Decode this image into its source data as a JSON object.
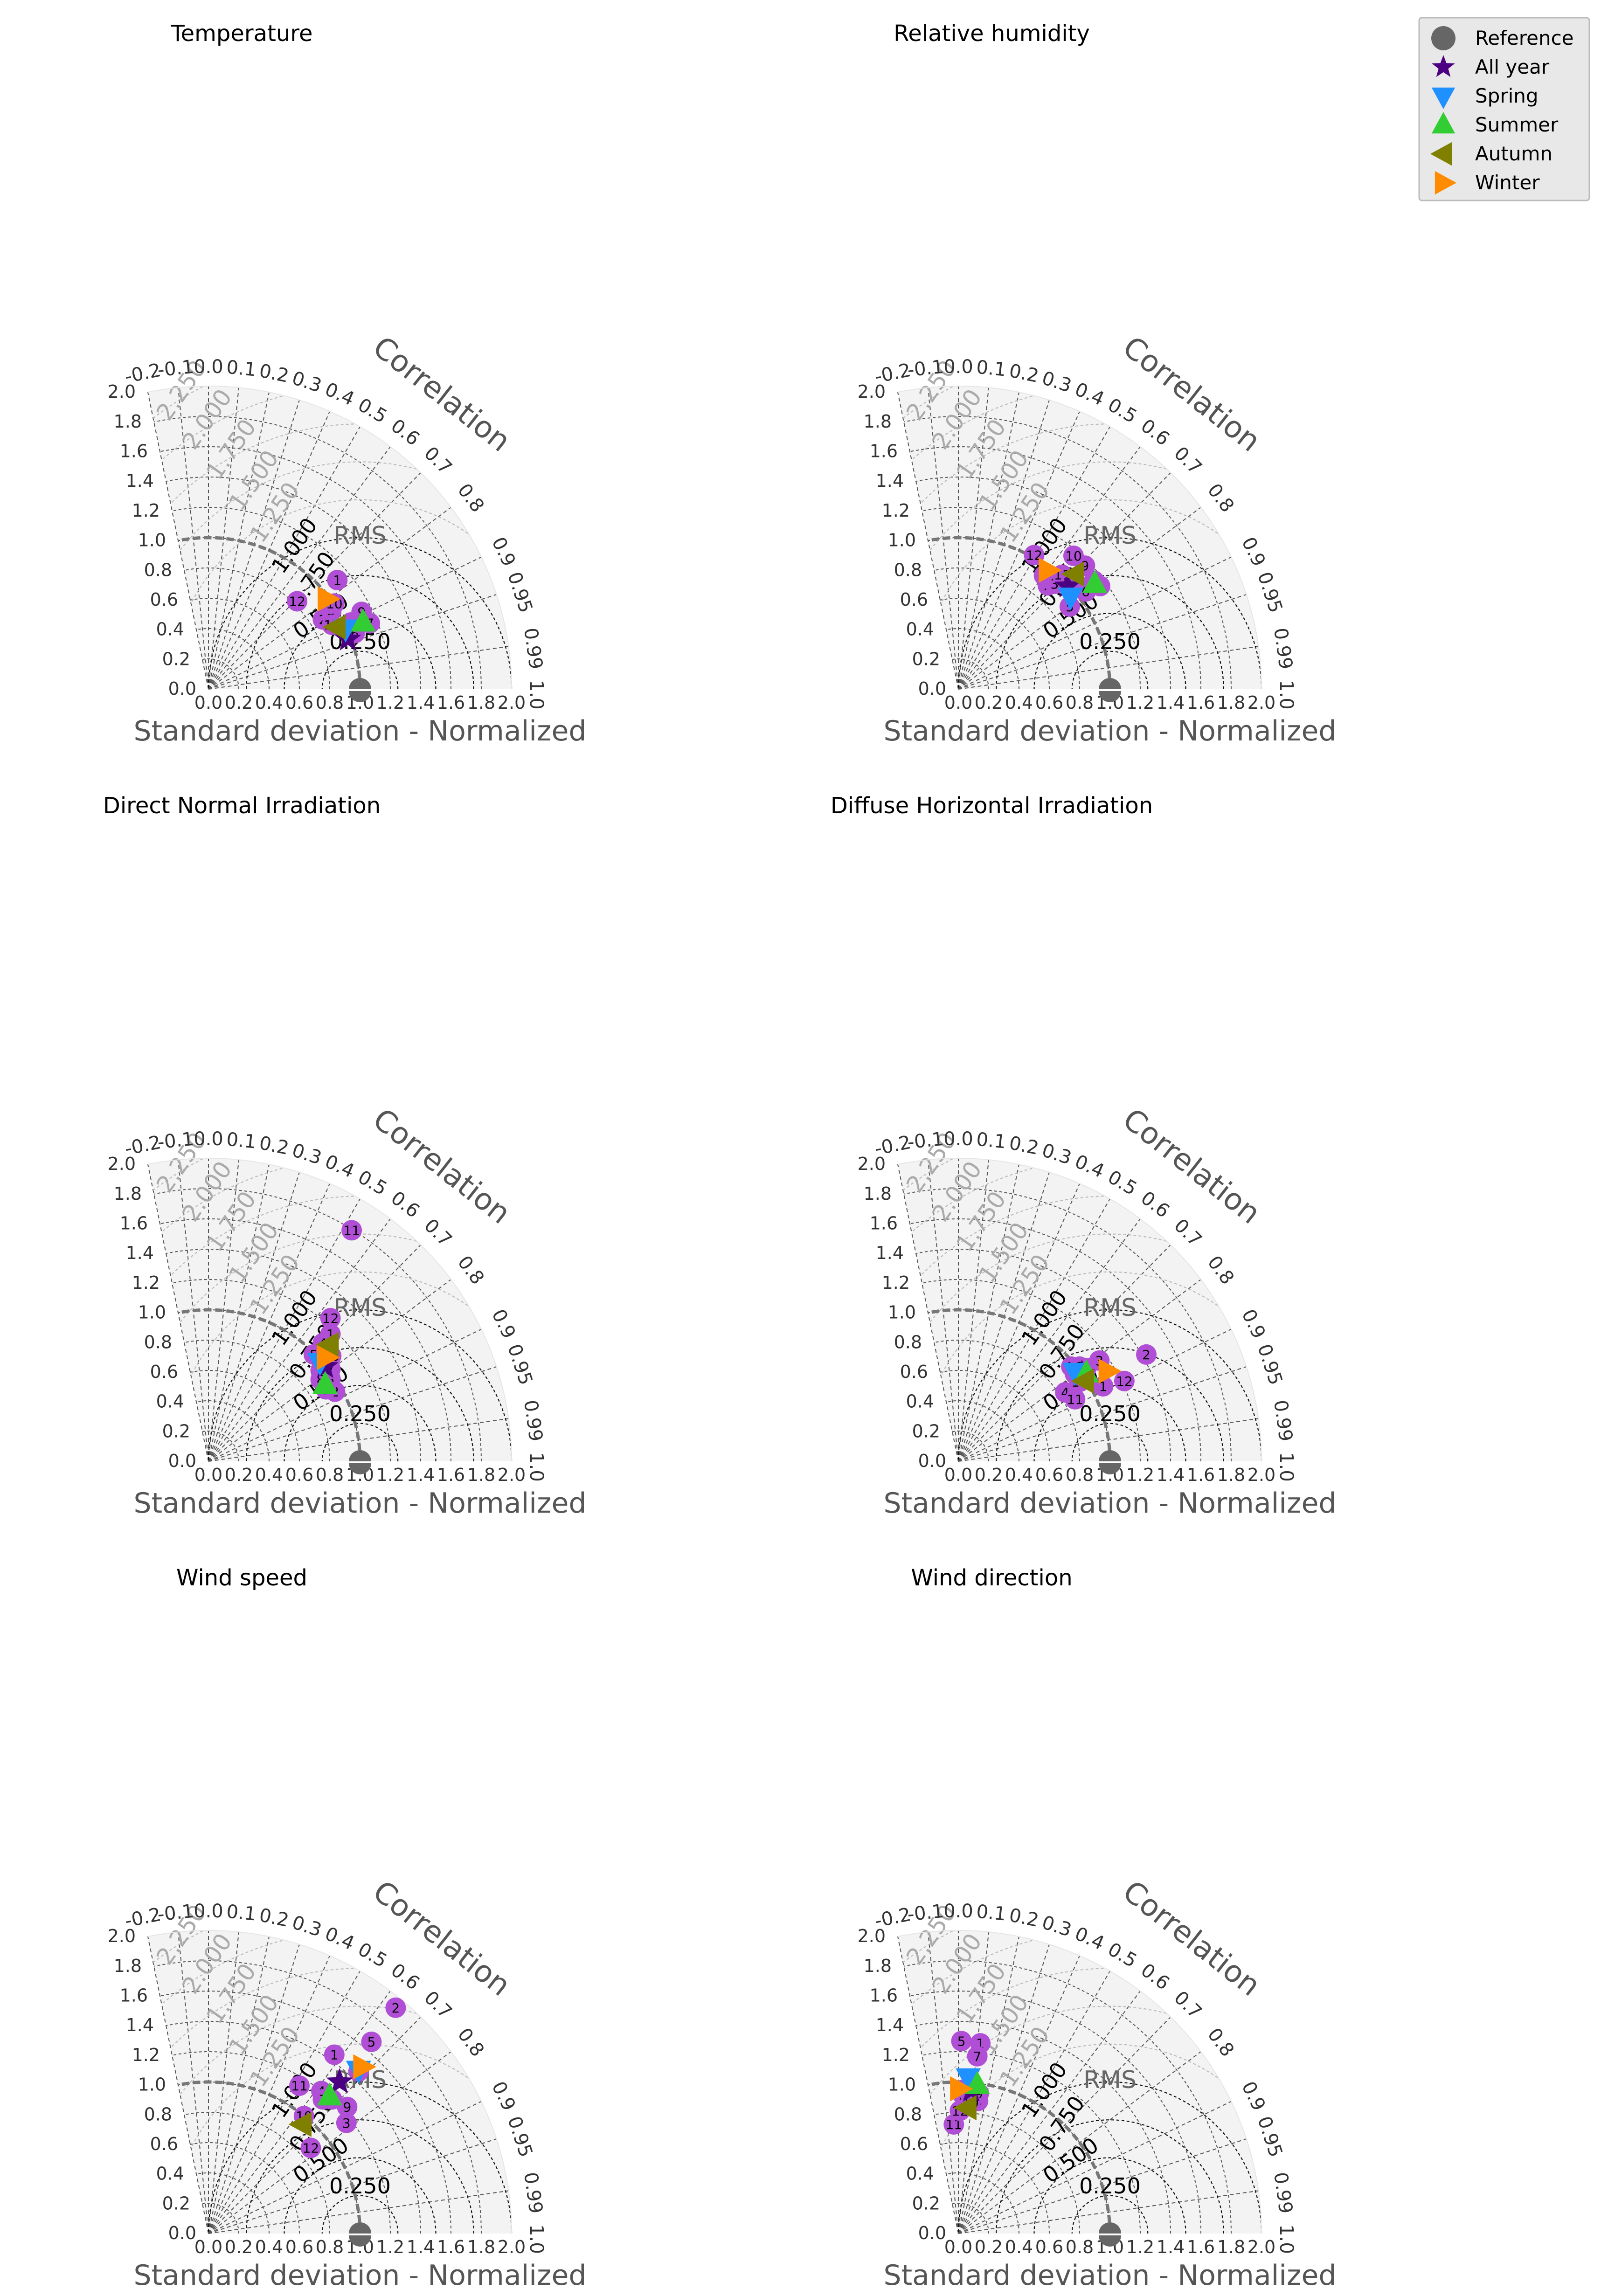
{
  "figure": {
    "xlabel": "Standard deviation - Normalized",
    "corr_title": "Correlation",
    "rms_title": "RMS",
    "std_ticks": [
      "0.0",
      "0.2",
      "0.4",
      "0.6",
      "0.8",
      "1.0",
      "1.2",
      "1.4",
      "1.6",
      "1.8",
      "2.0"
    ],
    "corr_ticks": [
      "-0.2",
      "-0.1",
      "0.0",
      "0.1",
      "0.2",
      "0.3",
      "0.4",
      "0.5",
      "0.6",
      "0.7",
      "0.8",
      "0.9",
      "0.95",
      "0.99",
      "1.0"
    ],
    "rms_contours": [
      "0.250",
      "0.500",
      "0.750",
      "1.000",
      "1.250",
      "1.500",
      "1.750",
      "2.000",
      "2.250"
    ]
  },
  "legend": {
    "items": [
      {
        "label": "Reference",
        "marker": "circle",
        "color": "#666666"
      },
      {
        "label": "All year",
        "marker": "star",
        "color": "#4b0082"
      },
      {
        "label": "Spring",
        "marker": "triangle-down",
        "color": "#1e90ff"
      },
      {
        "label": "Summer",
        "marker": "triangle-up",
        "color": "#32cd32"
      },
      {
        "label": "Autumn",
        "marker": "triangle-left",
        "color": "#808000"
      },
      {
        "label": "Winter",
        "marker": "triangle-right",
        "color": "#ff8c00"
      }
    ]
  },
  "colors": {
    "month": "#b04fd6",
    "grid": "#555555",
    "background": "#f3f3f3",
    "reference_arc": "#777777",
    "rms_far": "#bbbbbb"
  },
  "chart_data": [
    {
      "type": "scatter",
      "title": "Temperature",
      "xlabel": "Standard deviation - Normalized",
      "points": [
        {
          "label": "1",
          "kind": "month",
          "x": 0.85,
          "y": 0.72
        },
        {
          "label": "2",
          "kind": "month",
          "x": 0.755,
          "y": 0.46
        },
        {
          "label": "3",
          "kind": "month",
          "x": 0.81,
          "y": 0.52
        },
        {
          "label": "4",
          "kind": "month",
          "x": 0.94,
          "y": 0.44
        },
        {
          "label": "5",
          "kind": "month",
          "x": 0.89,
          "y": 0.405
        },
        {
          "label": "6",
          "kind": "month",
          "x": 0.965,
          "y": 0.37
        },
        {
          "label": "7",
          "kind": "month",
          "x": 1.065,
          "y": 0.435
        },
        {
          "label": "8",
          "kind": "month",
          "x": 0.985,
          "y": 0.44
        },
        {
          "label": "9",
          "kind": "month",
          "x": 1.01,
          "y": 0.51
        },
        {
          "label": "10",
          "kind": "month",
          "x": 0.83,
          "y": 0.565
        },
        {
          "label": "11",
          "kind": "month",
          "x": 0.815,
          "y": 0.425
        },
        {
          "label": "12",
          "kind": "month",
          "x": 0.585,
          "y": 0.58
        },
        {
          "label": "",
          "kind": "all",
          "x": 0.92,
          "y": 0.33
        },
        {
          "label": "",
          "kind": "spring",
          "x": 0.905,
          "y": 0.4
        },
        {
          "label": "",
          "kind": "summer",
          "x": 1.02,
          "y": 0.44
        },
        {
          "label": "",
          "kind": "autumn",
          "x": 0.845,
          "y": 0.41
        },
        {
          "label": "",
          "kind": "winter",
          "x": 0.78,
          "y": 0.595
        }
      ]
    },
    {
      "type": "scatter",
      "title": "Relative humidity",
      "xlabel": "Standard deviation - Normalized",
      "points": [
        {
          "label": "1",
          "kind": "month",
          "x": 0.565,
          "y": 0.75
        },
        {
          "label": "2",
          "kind": "month",
          "x": 0.59,
          "y": 0.685
        },
        {
          "label": "3",
          "kind": "month",
          "x": 0.635,
          "y": 0.695
        },
        {
          "label": "4",
          "kind": "month",
          "x": 0.74,
          "y": 0.665
        },
        {
          "label": "5",
          "kind": "month",
          "x": 0.735,
          "y": 0.545
        },
        {
          "label": "6",
          "kind": "month",
          "x": 0.84,
          "y": 0.645
        },
        {
          "label": "7",
          "kind": "month",
          "x": 0.935,
          "y": 0.68
        },
        {
          "label": "8",
          "kind": "month",
          "x": 0.895,
          "y": 0.715
        },
        {
          "label": "9",
          "kind": "month",
          "x": 0.835,
          "y": 0.815
        },
        {
          "label": "10",
          "kind": "month",
          "x": 0.76,
          "y": 0.88
        },
        {
          "label": "11",
          "kind": "month",
          "x": 0.685,
          "y": 0.755
        },
        {
          "label": "12",
          "kind": "month",
          "x": 0.5,
          "y": 0.885
        },
        {
          "label": "",
          "kind": "all",
          "x": 0.72,
          "y": 0.68
        },
        {
          "label": "",
          "kind": "spring",
          "x": 0.74,
          "y": 0.61
        },
        {
          "label": "",
          "kind": "summer",
          "x": 0.9,
          "y": 0.695
        },
        {
          "label": "",
          "kind": "autumn",
          "x": 0.77,
          "y": 0.76
        },
        {
          "label": "",
          "kind": "winter",
          "x": 0.59,
          "y": 0.785
        }
      ]
    },
    {
      "type": "scatter",
      "title": "Direct Normal Irradiation",
      "xlabel": "Standard deviation - Normalized",
      "points": [
        {
          "label": "1",
          "kind": "month",
          "x": 0.805,
          "y": 0.84
        },
        {
          "label": "2",
          "kind": "month",
          "x": 0.835,
          "y": 0.46
        },
        {
          "label": "3",
          "kind": "month",
          "x": 0.805,
          "y": 0.545
        },
        {
          "label": "4",
          "kind": "month",
          "x": 0.755,
          "y": 0.78
        },
        {
          "label": "5",
          "kind": "month",
          "x": 0.695,
          "y": 0.705
        },
        {
          "label": "6",
          "kind": "month",
          "x": 0.74,
          "y": 0.6
        },
        {
          "label": "7",
          "kind": "month",
          "x": 0.805,
          "y": 0.61
        },
        {
          "label": "8",
          "kind": "month",
          "x": 0.74,
          "y": 0.54
        },
        {
          "label": "9",
          "kind": "month",
          "x": 0.775,
          "y": 0.475
        },
        {
          "label": "10",
          "kind": "month",
          "x": 0.81,
          "y": 0.695
        },
        {
          "label": "11",
          "kind": "month",
          "x": 0.945,
          "y": 1.525
        },
        {
          "label": "12",
          "kind": "month",
          "x": 0.805,
          "y": 0.945
        },
        {
          "label": "",
          "kind": "all",
          "x": 0.77,
          "y": 0.625
        },
        {
          "label": "",
          "kind": "spring",
          "x": 0.735,
          "y": 0.655
        },
        {
          "label": "",
          "kind": "summer",
          "x": 0.77,
          "y": 0.505
        },
        {
          "label": "",
          "kind": "autumn",
          "x": 0.8,
          "y": 0.77
        },
        {
          "label": "",
          "kind": "winter",
          "x": 0.775,
          "y": 0.685
        }
      ]
    },
    {
      "type": "scatter",
      "title": "Diffuse Horizontal Irradiation",
      "xlabel": "Standard deviation - Normalized",
      "points": [
        {
          "label": "1",
          "kind": "month",
          "x": 0.955,
          "y": 0.495
        },
        {
          "label": "2",
          "kind": "month",
          "x": 1.24,
          "y": 0.705
        },
        {
          "label": "3",
          "kind": "month",
          "x": 0.93,
          "y": 0.665
        },
        {
          "label": "4",
          "kind": "month",
          "x": 0.705,
          "y": 0.455
        },
        {
          "label": "5",
          "kind": "month",
          "x": 0.745,
          "y": 0.625
        },
        {
          "label": "6",
          "kind": "month",
          "x": 0.77,
          "y": 0.575
        },
        {
          "label": "7",
          "kind": "month",
          "x": 0.815,
          "y": 0.595
        },
        {
          "label": "8",
          "kind": "month",
          "x": 0.845,
          "y": 0.615
        },
        {
          "label": "9",
          "kind": "month",
          "x": 0.8,
          "y": 0.625
        },
        {
          "label": "10",
          "kind": "month",
          "x": 0.8,
          "y": 0.525
        },
        {
          "label": "11",
          "kind": "month",
          "x": 0.77,
          "y": 0.41
        },
        {
          "label": "12",
          "kind": "month",
          "x": 1.095,
          "y": 0.53
        },
        {
          "label": "",
          "kind": "all",
          "x": 0.815,
          "y": 0.58
        },
        {
          "label": "",
          "kind": "spring",
          "x": 0.77,
          "y": 0.59
        },
        {
          "label": "",
          "kind": "summer",
          "x": 0.845,
          "y": 0.58
        },
        {
          "label": "",
          "kind": "autumn",
          "x": 0.835,
          "y": 0.53
        },
        {
          "label": "",
          "kind": "winter",
          "x": 0.985,
          "y": 0.595
        }
      ]
    },
    {
      "type": "scatter",
      "title": "Wind speed",
      "xlabel": "Standard deviation - Normalized",
      "points": [
        {
          "label": "1",
          "kind": "month",
          "x": 0.83,
          "y": 1.18
        },
        {
          "label": "2",
          "kind": "month",
          "x": 1.235,
          "y": 1.49
        },
        {
          "label": "3",
          "kind": "month",
          "x": 0.91,
          "y": 0.73
        },
        {
          "label": "4",
          "kind": "month",
          "x": 0.745,
          "y": 0.94
        },
        {
          "label": "5",
          "kind": "month",
          "x": 1.075,
          "y": 1.265
        },
        {
          "label": "6",
          "kind": "month",
          "x": 0.99,
          "y": 1.07
        },
        {
          "label": "7",
          "kind": "month",
          "x": 0.755,
          "y": 0.885
        },
        {
          "label": "8",
          "kind": "month",
          "x": 0.815,
          "y": 0.885
        },
        {
          "label": "9",
          "kind": "month",
          "x": 0.915,
          "y": 0.835
        },
        {
          "label": "10",
          "kind": "month",
          "x": 0.63,
          "y": 0.775
        },
        {
          "label": "11",
          "kind": "month",
          "x": 0.6,
          "y": 0.975
        },
        {
          "label": "12",
          "kind": "month",
          "x": 0.675,
          "y": 0.565
        },
        {
          "label": "",
          "kind": "all",
          "x": 0.865,
          "y": 1.0
        },
        {
          "label": "",
          "kind": "spring",
          "x": 0.99,
          "y": 1.08
        },
        {
          "label": "",
          "kind": "summer",
          "x": 0.8,
          "y": 0.905
        },
        {
          "label": "",
          "kind": "autumn",
          "x": 0.62,
          "y": 0.72
        },
        {
          "label": "",
          "kind": "winter",
          "x": 1.015,
          "y": 1.1
        }
      ]
    },
    {
      "type": "scatter",
      "title": "Wind direction",
      "xlabel": "Standard deviation - Normalized",
      "points": [
        {
          "label": "1",
          "kind": "month",
          "x": 0.145,
          "y": 1.255
        },
        {
          "label": "2",
          "kind": "month",
          "x": 0.03,
          "y": 0.915
        },
        {
          "label": "3",
          "kind": "month",
          "x": 0.065,
          "y": 0.955
        },
        {
          "label": "4",
          "kind": "month",
          "x": 0.05,
          "y": 0.955
        },
        {
          "label": "5",
          "kind": "month",
          "x": 0.02,
          "y": 1.27
        },
        {
          "label": "6",
          "kind": "month",
          "x": 0.11,
          "y": 0.89
        },
        {
          "label": "7",
          "kind": "month",
          "x": 0.125,
          "y": 1.17
        },
        {
          "label": "8",
          "kind": "month",
          "x": 0.13,
          "y": 0.875
        },
        {
          "label": "9",
          "kind": "month",
          "x": 0.135,
          "y": 0.925
        },
        {
          "label": "10",
          "kind": "month",
          "x": 0.08,
          "y": 0.865
        },
        {
          "label": "11",
          "kind": "month",
          "x": -0.03,
          "y": 0.72
        },
        {
          "label": "12",
          "kind": "month",
          "x": 0.01,
          "y": 0.81
        },
        {
          "label": "",
          "kind": "all",
          "x": 0.085,
          "y": 0.945
        },
        {
          "label": "",
          "kind": "spring",
          "x": 0.065,
          "y": 1.03
        },
        {
          "label": "",
          "kind": "summer",
          "x": 0.125,
          "y": 0.98
        },
        {
          "label": "",
          "kind": "autumn",
          "x": 0.06,
          "y": 0.83
        },
        {
          "label": "",
          "kind": "winter",
          "x": 0.005,
          "y": 0.955
        }
      ]
    }
  ]
}
